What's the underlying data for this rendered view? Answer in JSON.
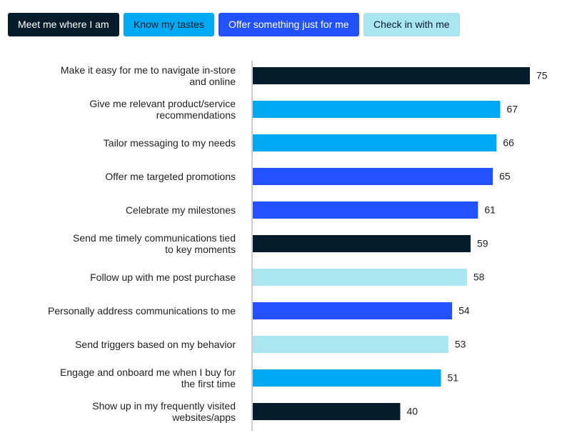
{
  "chart_data": {
    "type": "bar",
    "orientation": "horizontal",
    "legend": [
      {
        "name": "Meet me where I am",
        "color": "#051c2c"
      },
      {
        "name": "Know my tastes",
        "color": "#00a9f4"
      },
      {
        "name": "Offer something just for me",
        "color": "#2251ff"
      },
      {
        "name": "Check in with me",
        "color": "#aae6f0"
      }
    ],
    "categories": [
      "Make it easy for me to navigate in-store\nand online",
      "Give me relevant product/service\nrecommendations",
      "Tailor messaging to my needs",
      "Offer me targeted promotions",
      "Celebrate my milestones",
      "Send me timely communications tied\nto key moments",
      "Follow up with me post purchase",
      "Personally address communications to me",
      "Send triggers based on my behavior",
      "Engage and onboard me when I buy for\nthe first time",
      "Show up in my frequently visited\nwebsites/apps"
    ],
    "values": [
      75,
      67,
      66,
      65,
      61,
      59,
      58,
      54,
      53,
      51,
      40
    ],
    "colors": [
      "#051c2c",
      "#00a9f4",
      "#00a9f4",
      "#2251ff",
      "#2251ff",
      "#051c2c",
      "#aae6f0",
      "#2251ff",
      "#aae6f0",
      "#00a9f4",
      "#051c2c"
    ],
    "xlim": [
      0,
      75
    ]
  }
}
